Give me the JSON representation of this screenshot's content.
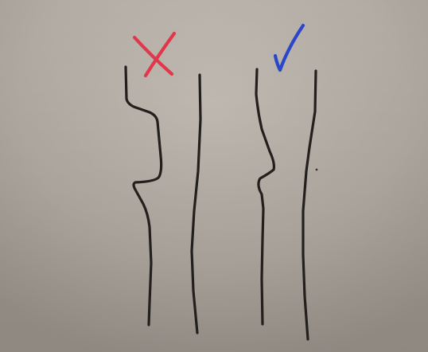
{
  "scene": {
    "description_colors": {
      "board_light": "#c2bcb4",
      "board_mid": "#b5aea6",
      "board_dark": "#a39b93",
      "ink_dark": "#221f1c",
      "mark_red": "#e0384a",
      "mark_blue": "#2b46c8"
    },
    "marks": {
      "wrong_mark_icon": "red-x-icon",
      "right_mark_icon": "blue-check-icon"
    }
  }
}
